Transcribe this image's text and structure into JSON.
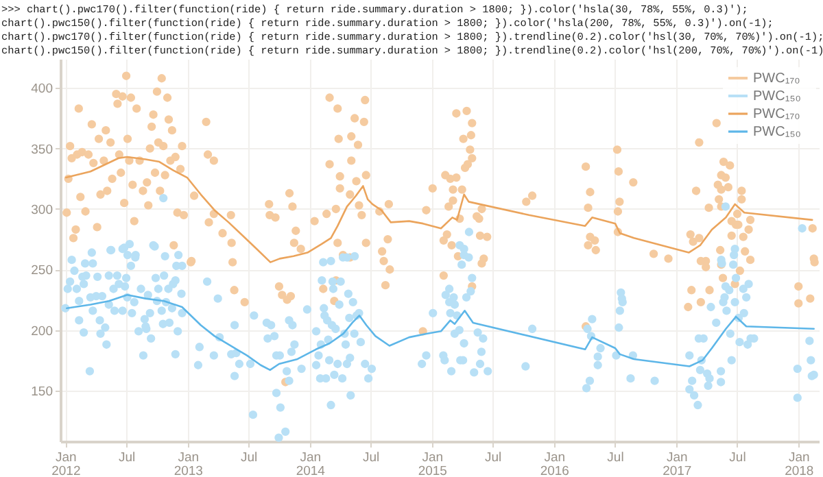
{
  "chart_data": {
    "type": "scatter",
    "annotations": [
      ">>> chart().pwc170().filter(function(ride) { return ride.summary.duration > 1800; }).color('hsla(30, 78%, 55%, 0.3)');",
      "chart().pwc150().filter(function(ride) { return ride.summary.duration > 1800; }).color('hsla(200, 78%, 55%, 0.3)').on(-1);",
      "chart().pwc170().filter(function(ride) { return ride.summary.duration > 1800; }).trendline(0.2).color('hsl(30, 70%, 70%)').on(-1);",
      "chart().pwc150().filter(function(ride) { return ride.summary.duration > 1800; }).trendline(0.2).color('hsl(200, 70%, 70%)').on(-1)"
    ],
    "xlim": [
      "2011-12-17",
      "2018-03-03"
    ],
    "xticks": [
      {
        "value": "2012-01-01",
        "label": "Jan\n2012"
      },
      {
        "value": "2012-07-01",
        "label": "Jul"
      },
      {
        "value": "2013-01-01",
        "label": "Jan\n2013"
      },
      {
        "value": "2013-07-01",
        "label": "Jul"
      },
      {
        "value": "2014-01-01",
        "label": "Jan\n2014"
      },
      {
        "value": "2014-07-01",
        "label": "Jul"
      },
      {
        "value": "2015-01-01",
        "label": "Jan\n2015"
      },
      {
        "value": "2015-07-01",
        "label": "Jul"
      },
      {
        "value": "2016-01-01",
        "label": "Jan\n2016"
      },
      {
        "value": "2016-07-01",
        "label": "Jul"
      },
      {
        "value": "2017-01-01",
        "label": "Jan\n2017"
      },
      {
        "value": "2017-07-01",
        "label": "Jul"
      },
      {
        "value": "2018-01-01",
        "label": "Jan\n2018"
      }
    ],
    "ylim": [
      108,
      424
    ],
    "yticks": [
      150,
      200,
      250,
      300,
      350,
      400
    ],
    "grid": true,
    "legend": "top right",
    "marker": "circle",
    "series": [
      {
        "name": "PWC₁₇₀",
        "type": "scatter",
        "color": "#f5cba0",
        "x": [
          "2012-01-05",
          "2012-01-10",
          "2012-01-15",
          "2012-01-20",
          "2012-01-25",
          "2012-02-01",
          "2012-02-05",
          "2012-02-10",
          "2012-02-15",
          "2012-02-20",
          "2012-03-01",
          "2012-03-10",
          "2012-03-20",
          "2012-03-25",
          "2012-04-05",
          "2012-04-10",
          "2012-04-15",
          "2012-04-25",
          "2012-05-01",
          "2012-05-05",
          "2012-05-15",
          "2012-05-20",
          "2012-06-01",
          "2012-06-05",
          "2012-06-10",
          "2012-06-15",
          "2012-06-20",
          "2012-06-25",
          "2012-07-01",
          "2012-07-05",
          "2012-07-10",
          "2012-07-15",
          "2012-07-20",
          "2012-07-25",
          "2012-08-01",
          "2012-08-10",
          "2012-08-20",
          "2012-09-01",
          "2012-09-05",
          "2012-09-10",
          "2012-09-15",
          "2012-09-20",
          "2012-09-25",
          "2012-10-01",
          "2012-10-05",
          "2012-10-10",
          "2012-10-15",
          "2012-10-20",
          "2012-10-25",
          "2012-11-01",
          "2012-11-05",
          "2012-11-10",
          "2012-11-15",
          "2012-11-20",
          "2012-11-25",
          "2012-12-01",
          "2012-12-10",
          "2012-12-15",
          "2012-12-20",
          "2013-02-25",
          "2013-03-02",
          "2013-03-20",
          "2013-01-20",
          "2013-03-05",
          "2013-03-20",
          "2013-04-15",
          "2013-05-10",
          "2013-05-12",
          "2013-05-15",
          "2013-01-10",
          "2013-01-12",
          "2013-05-20",
          "2013-06-20",
          "2013-09-01",
          "2013-09-03",
          "2013-09-20",
          "2013-11-01",
          "2013-11-10",
          "2013-11-20",
          "2013-11-15",
          "2013-12-05",
          "2014-01-15",
          "2013-10-01",
          "2013-10-10",
          "2013-10-25",
          "2013-11-05",
          "2013-10-20",
          "2014-03-01",
          "2014-03-25",
          "2014-03-28",
          "2014-05-05",
          "2014-05-15",
          "2014-05-25",
          "2014-06-15",
          "2014-06-12",
          "2014-03-01",
          "2014-04-01",
          "2014-06-18",
          "2014-05-05",
          "2014-05-20",
          "2014-03-20",
          "2014-02-20",
          "2014-04-01",
          "2014-05-01",
          "2014-05-28",
          "2014-06-05",
          "2014-03-25",
          "2014-04-10",
          "2014-05-01",
          "2014-06-18",
          "2014-08-05",
          "2014-08-25",
          "2014-08-22",
          "2014-07-28",
          "2014-02-10",
          "2014-03-20",
          "2014-03-15",
          "2014-08-10",
          "2014-08-28",
          "2014-08-15",
          "2015-03-15",
          "2015-04-15",
          "2015-05-01",
          "2015-04-05",
          "2015-04-28",
          "2015-04-25",
          "2015-05-01",
          "2015-04-10",
          "2015-04-18",
          "2015-02-10",
          "2015-02-25",
          "2015-03-15",
          "2015-01-03",
          "2015-03-05",
          "2015-03-05",
          "2015-04-01",
          "2015-02-20",
          "2015-03-25",
          "2014-12-15",
          "2015-05-15",
          "2015-05-22",
          "2015-05-30",
          "2015-02-15",
          "2015-02-05",
          "2015-03-01",
          "2015-03-20",
          "2015-05-25",
          "2015-06-15",
          "2015-06-05",
          "2016-04-05",
          "2016-04-18",
          "2016-04-12",
          "2016-04-18",
          "2016-04-12",
          "2016-05-05",
          "2016-05-02",
          "2016-07-08",
          "2016-07-12",
          "2016-07-15",
          "2016-07-10",
          "2016-08-25",
          "2016-07-10",
          "2015-10-10",
          "2015-10-28",
          "2016-10-25",
          "2016-12-08",
          "2017-03-10",
          "2017-05-01",
          "2017-05-22",
          "2017-06-10",
          "2017-05-15",
          "2017-05-28",
          "2017-05-05",
          "2017-06-05",
          "2017-05-15",
          "2017-03-01",
          "2017-07-15",
          "2017-07-15",
          "2017-05-08",
          "2017-04-08",
          "2017-05-15",
          "2017-07-02",
          "2017-06-28",
          "2017-06-15",
          "2017-07-05",
          "2017-08-10",
          "2017-08-05",
          "2017-07-20",
          "2017-06-15",
          "2017-02-12",
          "2017-02-20",
          "2017-03-10",
          "2017-07-25",
          "2017-05-12",
          "2017-03-15",
          "2017-03-30",
          "2017-05-15",
          "2017-03-30",
          "2018-01-01",
          "2018-01-01",
          "2018-02-05",
          "2018-02-18",
          "2018-02-12",
          "2018-02-16",
          "2017-02-15",
          "2017-02-05",
          "2017-03-15",
          "2017-04-10",
          "2017-06-25",
          "2017-07-10",
          "2017-08-10",
          "2017-05-20",
          "2016-04-05",
          "2014-12-05",
          "2015-02-05",
          "2015-05-01",
          "2015-05-30"
        ],
        "values": [
          297,
          325,
          352,
          342,
          276,
          283,
          345,
          383,
          310,
          347,
          298,
          345,
          370,
          338,
          285,
          358,
          312,
          340,
          365,
          315,
          355,
          325,
          395,
          387,
          345,
          330,
          393,
          305,
          410,
          358,
          340,
          392,
          320,
          290,
          383,
          340,
          315,
          322,
          303,
          350,
          368,
          378,
          330,
          397,
          355,
          315,
          408,
          352,
          328,
          392,
          374,
          340,
          365,
          270,
          343,
          297,
          333,
          352,
          295,
          372,
          345,
          340,
          311,
          289,
          296,
          280,
          295,
          272,
          256,
          256,
          257,
          233,
          223,
          304,
          295,
          293,
          313,
          302,
          282,
          272,
          267,
          290,
          236,
          229,
          225,
          228,
          157,
          392,
          383,
          358,
          360,
          375,
          353,
          390,
          372,
          337,
          327,
          328,
          340,
          323,
          300,
          296,
          317,
          312,
          303,
          295,
          272,
          262,
          260,
          272,
          265,
          304,
          275,
          298,
          234,
          241,
          224,
          257,
          250,
          237,
          379,
          381,
          371,
          358,
          361,
          349,
          342,
          334,
          337,
          328,
          325,
          326,
          317,
          316,
          307,
          316,
          302,
          292,
          299,
          294,
          292,
          300,
          279,
          274,
          270,
          261,
          278,
          277,
          259,
          335,
          314,
          301,
          277,
          270,
          266,
          274,
          349,
          331,
          306,
          298,
          322,
          281,
          306,
          311,
          263,
          259,
          355,
          371,
          339,
          336,
          328,
          326,
          320,
          318,
          316,
          315,
          315,
          308,
          308,
          301,
          302,
          296,
          287,
          290,
          287,
          291,
          283,
          277,
          278,
          279,
          273,
          276,
          265,
          266,
          257,
          257,
          254,
          252,
          236,
          222,
          226,
          256,
          284,
          259,
          233,
          219,
          223,
          233,
          238,
          249,
          258,
          243,
          203,
          199,
          245,
          236,
          255
        ]
      },
      {
        "name": "PWC₁₅₀",
        "type": "scatter",
        "color": "#b8e0f6",
        "x": [
          "2012-01-01",
          "2012-01-08",
          "2012-01-15",
          "2012-01-28",
          "2012-02-04",
          "2012-02-11",
          "2012-02-21",
          "2012-02-25",
          "2012-03-03",
          "2012-02-11",
          "2012-02-25",
          "2012-02-29",
          "2012-03-14",
          "2012-03-16",
          "2012-03-23",
          "2012-03-23",
          "2012-04-02",
          "2012-04-06",
          "2012-04-13",
          "2012-04-15",
          "2012-04-20",
          "2012-04-29",
          "2012-05-03",
          "2012-05-10",
          "2012-05-10",
          "2012-05-17",
          "2012-05-24",
          "2012-05-27",
          "2012-06-04",
          "2012-06-09",
          "2012-06-20",
          "2012-06-20",
          "2012-06-27",
          "2012-07-01",
          "2012-07-04",
          "2012-07-11",
          "2012-07-15",
          "2012-07-18",
          "2012-07-25",
          "2012-07-29",
          "2012-08-07",
          "2012-08-14",
          "2012-08-21",
          "2012-08-25",
          "2012-08-28",
          "2012-08-30",
          "2012-09-04",
          "2012-09-10",
          "2012-09-13",
          "2012-09-24",
          "2012-09-27",
          "2012-10-01",
          "2012-10-05",
          "2012-10-15",
          "2012-10-19",
          "2012-10-22",
          "2012-10-28",
          "2012-11-04",
          "2012-11-07",
          "2012-11-15",
          "2012-11-18",
          "2012-11-25",
          "2012-11-25",
          "2012-12-02",
          "2012-12-04",
          "2012-12-13",
          "2012-12-15",
          "2012-12-15",
          "2012-10-20",
          "2012-01-20",
          "2012-03-20",
          "2012-05-15",
          "2012-06-25",
          "2012-07-05",
          "2012-07-28",
          "2012-09-20",
          "2012-10-25",
          "2012-11-28",
          "2013-02-01",
          "2013-02-05",
          "2013-02-28",
          "2013-03-20",
          "2013-04-01",
          "2013-04-06",
          "2013-05-11",
          "2013-05-21",
          "2013-05-21",
          "2013-05-26",
          "2013-06-04",
          "2013-07-07",
          "2013-07-15",
          "2013-07-18",
          "2013-08-25",
          "2013-08-28",
          "2013-09-07",
          "2013-09-17",
          "2013-09-23",
          "2013-09-23",
          "2013-09-30",
          "2013-10-05",
          "2013-10-03",
          "2013-10-20",
          "2013-10-24",
          "2013-10-31",
          "2013-10-31",
          "2013-11-07",
          "2013-11-10",
          "2013-11-16",
          "2013-12-07",
          "2013-12-24",
          "2014-01-20",
          "2014-01-20",
          "2014-01-27",
          "2014-02-01",
          "2014-02-03",
          "2014-02-06",
          "2014-02-12",
          "2014-02-14",
          "2014-02-18",
          "2014-02-22",
          "2014-02-25",
          "2014-02-28",
          "2014-03-05",
          "2014-03-08",
          "2014-03-10",
          "2014-03-12",
          "2014-03-15",
          "2014-03-19",
          "2014-03-25",
          "2014-03-30",
          "2014-04-03",
          "2014-04-08",
          "2014-04-15",
          "2014-04-18",
          "2014-04-22",
          "2014-04-26",
          "2014-04-29",
          "2014-05-01",
          "2014-05-03",
          "2014-05-10",
          "2014-05-14",
          "2014-05-21",
          "2014-05-28",
          "2014-06-02",
          "2014-06-15",
          "2014-06-25",
          "2014-07-05",
          "2014-02-10",
          "2014-03-05",
          "2014-04-10",
          "2014-04-22",
          "2014-05-15",
          "2014-12-02",
          "2014-12-15",
          "2015-01-04",
          "2015-02-04",
          "2015-02-08",
          "2015-02-11",
          "2015-02-22",
          "2015-02-22",
          "2015-02-25",
          "2015-02-28",
          "2015-03-07",
          "2015-03-10",
          "2015-03-10",
          "2015-03-17",
          "2015-03-24",
          "2015-03-27",
          "2015-04-04",
          "2015-03-31",
          "2015-04-07",
          "2015-04-07",
          "2015-04-14",
          "2015-04-21",
          "2015-04-27",
          "2015-05-01",
          "2015-05-07",
          "2015-05-18",
          "2015-05-25",
          "2015-05-29",
          "2015-06-03",
          "2015-06-17",
          "2015-10-08",
          "2015-10-28",
          "2015-04-22",
          "2015-03-25",
          "2015-04-07",
          "2016-04-07",
          "2016-04-10",
          "2016-04-17",
          "2016-04-21",
          "2016-04-24",
          "2016-05-11",
          "2016-05-11",
          "2016-05-19",
          "2016-07-05",
          "2016-07-13",
          "2016-07-16",
          "2016-07-19",
          "2016-07-22",
          "2016-07-24",
          "2016-08-17",
          "2016-08-24",
          "2016-10-28",
          "2017-02-09",
          "2017-02-09",
          "2017-02-17",
          "2017-02-23",
          "2017-03-06",
          "2017-03-09",
          "2017-03-13",
          "2017-03-17",
          "2017-03-23",
          "2017-04-03",
          "2017-04-06",
          "2017-04-10",
          "2017-04-14",
          "2017-04-30",
          "2017-05-14",
          "2017-05-14",
          "2017-05-17",
          "2017-05-21",
          "2017-05-25",
          "2017-05-28",
          "2017-05-31",
          "2017-06-08",
          "2017-06-11",
          "2017-06-15",
          "2017-06-22",
          "2017-06-25",
          "2017-06-28",
          "2017-07-06",
          "2017-07-09",
          "2017-07-20",
          "2017-07-22",
          "2017-07-29",
          "2017-08-02",
          "2017-08-05",
          "2017-08-11",
          "2017-08-21",
          "2017-05-28",
          "2017-06-25",
          "2017-05-15",
          "2017-06-20",
          "2017-12-29",
          "2017-12-29",
          "2018-02-03",
          "2018-02-07",
          "2018-02-10",
          "2018-02-16",
          "2018-01-12"
        ],
        "values": [
          218,
          234,
          240,
          249,
          234,
          224,
          244,
          238,
          245,
          208,
          198,
          255,
          166,
          227,
          255,
          216,
          228,
          244,
          208,
          197,
          228,
          202,
          188,
          221,
          245,
          266,
          234,
          216,
          245,
          238,
          267,
          216,
          236,
          243,
          227,
          271,
          253,
          214,
          223,
          262,
          199,
          234,
          179,
          209,
          203,
          201,
          229,
          214,
          193,
          269,
          243,
          224,
          234,
          216,
          205,
          245,
          223,
          234,
          206,
          218,
          238,
          180,
          241,
          199,
          262,
          230,
          214,
          253,
          309,
          258,
          264,
          266,
          268,
          262,
          260,
          270,
          261,
          253,
          171,
          186,
          240,
          179,
          226,
          194,
          180,
          204,
          162,
          181,
          172,
          172,
          130,
          212,
          206,
          193,
          204,
          195,
          179,
          148,
          111,
          136,
          179,
          116,
          166,
          158,
          208,
          182,
          204,
          188,
          168,
          217,
          199,
          171,
          179,
          160,
          188,
          241,
          218,
          212,
          160,
          208,
          192,
          175,
          138,
          204,
          240,
          234,
          163,
          201,
          172,
          221,
          240,
          160,
          197,
          188,
          172,
          230,
          210,
          177,
          146,
          223,
          197,
          212,
          214,
          190,
          172,
          160,
          168,
          256,
          257,
          260,
          260,
          261,
          172,
          179,
          214,
          179,
          175,
          229,
          234,
          223,
          214,
          166,
          227,
          221,
          197,
          212,
          200,
          175,
          175,
          254,
          262,
          189,
          227,
          260,
          232,
          243,
          165,
          198,
          172,
          182,
          193,
          166,
          170,
          201,
          281,
          270,
          267,
          152,
          201,
          158,
          195,
          209,
          178,
          171,
          185,
          179,
          202,
          216,
          231,
          226,
          223,
          160,
          179,
          158,
          179,
          151,
          158,
          146,
          138,
          193,
          167,
          175,
          193,
          164,
          154,
          160,
          219,
          206,
          166,
          157,
          255,
          223,
          227,
          236,
          216,
          233,
          197,
          175,
          262,
          223,
          243,
          210,
          190,
          234,
          214,
          227,
          188,
          238,
          193,
          193,
          302,
          267,
          258,
          254,
          168,
          144,
          191,
          175,
          162,
          163,
          284
        ]
      },
      {
        "name": "PWC₁₇₀",
        "type": "line",
        "marker": "none",
        "color": "#eba45c",
        "x": [
          "2012-01-03",
          "2012-03-16",
          "2012-06-08",
          "2012-07-04",
          "2012-08-28",
          "2012-10-08",
          "2012-11-18",
          "2012-12-30",
          "2013-02-09",
          "2013-03-22",
          "2013-05-03",
          "2013-06-14",
          "2013-07-26",
          "2013-09-05",
          "2013-10-03",
          "2013-11-13",
          "2013-12-25",
          "2014-02-05",
          "2014-03-05",
          "2014-03-25",
          "2014-04-22",
          "2014-05-19",
          "2014-06-09",
          "2014-06-23",
          "2014-07-07",
          "2014-08-03",
          "2014-08-31",
          "2014-10-25",
          "2014-12-05",
          "2015-01-28",
          "2015-03-03",
          "2015-03-17",
          "2015-04-07",
          "2015-04-21",
          "2015-10-18",
          "2016-04-03",
          "2016-04-24",
          "2016-07-02",
          "2016-07-16",
          "2016-08-27",
          "2017-02-07",
          "2017-03-13",
          "2017-04-17",
          "2017-05-29",
          "2017-06-25",
          "2017-07-23",
          "2018-02-11"
        ],
        "values": [
          326,
          331,
          342,
          343,
          341,
          339,
          332,
          326,
          312,
          299,
          289,
          278,
          267,
          256,
          259,
          261,
          264,
          271,
          276,
          286,
          302,
          311,
          319,
          308,
          304,
          299,
          289,
          290,
          288,
          284,
          293,
          291,
          312,
          306,
          295,
          286,
          293,
          288,
          280,
          276,
          264,
          270,
          283,
          293,
          304,
          297,
          291
        ]
      },
      {
        "name": "PWC₁₅₀",
        "type": "line",
        "marker": "none",
        "color": "#5db6e8",
        "x": [
          "2012-01-05",
          "2012-03-16",
          "2012-05-10",
          "2012-07-04",
          "2012-08-28",
          "2012-10-22",
          "2012-12-15",
          "2013-02-09",
          "2013-03-22",
          "2013-05-03",
          "2013-06-27",
          "2013-08-07",
          "2013-09-04",
          "2013-10-01",
          "2013-11-25",
          "2014-01-19",
          "2014-03-01",
          "2014-04-11",
          "2014-05-08",
          "2014-05-29",
          "2014-06-19",
          "2014-07-16",
          "2014-08-27",
          "2014-10-25",
          "2014-12-18",
          "2015-01-28",
          "2015-02-25",
          "2015-03-10",
          "2015-04-09",
          "2015-05-04",
          "2016-04-03",
          "2016-04-24",
          "2016-07-02",
          "2016-07-16",
          "2016-08-27",
          "2017-02-09",
          "2017-03-20",
          "2017-04-17",
          "2017-05-29",
          "2017-06-28",
          "2017-07-29",
          "2018-02-16"
        ],
        "values": [
          218,
          221,
          224,
          229,
          226,
          224,
          219,
          204,
          195,
          188,
          179,
          171,
          167,
          172,
          176,
          184,
          189,
          197,
          206,
          212,
          204,
          195,
          187,
          194,
          197,
          199,
          208,
          205,
          216,
          206,
          184,
          194,
          185,
          180,
          176,
          170,
          175,
          185,
          201,
          211,
          203,
          201
        ]
      }
    ]
  }
}
